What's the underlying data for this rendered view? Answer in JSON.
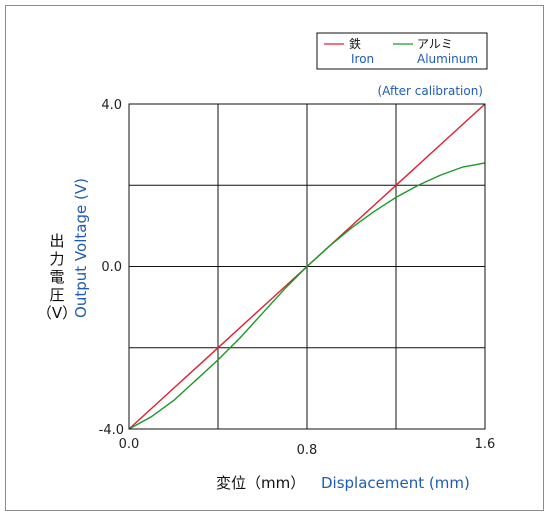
{
  "chart_data": {
    "type": "line",
    "note": "(After calibration)",
    "xlabel_jp": "変位（mm）",
    "xlabel_en": "Displacement (mm)",
    "ylabel_jp": [
      "出",
      "力",
      "電",
      "圧"
    ],
    "ylabel_jp_unit": "（V）",
    "ylabel_en": "Output Voltage (V)",
    "xlim": [
      0.0,
      1.6
    ],
    "ylim": [
      -4.0,
      4.0
    ],
    "x_ticks": [
      "0.0",
      "0.8",
      "1.6"
    ],
    "y_ticks": [
      "4.0",
      "0.0",
      "-4.0"
    ],
    "grid": true,
    "legend_position": "top-right",
    "series": [
      {
        "name": "鉄",
        "name_en": "Iron",
        "color": "#e02030",
        "x": [
          0.0,
          0.2,
          0.4,
          0.6,
          0.8,
          1.0,
          1.2,
          1.4,
          1.6
        ],
        "y": [
          -4.0,
          -3.0,
          -2.0,
          -1.0,
          0.0,
          1.0,
          2.0,
          3.0,
          4.0
        ]
      },
      {
        "name": "アルミ",
        "name_en": "Aluminum",
        "color": "#1a9a2a",
        "x": [
          0.0,
          0.1,
          0.2,
          0.3,
          0.4,
          0.5,
          0.6,
          0.7,
          0.8,
          0.9,
          1.0,
          1.1,
          1.2,
          1.3,
          1.4,
          1.5,
          1.6
        ],
        "y": [
          -4.0,
          -3.7,
          -3.3,
          -2.8,
          -2.3,
          -1.75,
          -1.15,
          -0.55,
          0.0,
          0.5,
          0.95,
          1.35,
          1.7,
          2.0,
          2.25,
          2.45,
          2.55
        ]
      }
    ]
  }
}
